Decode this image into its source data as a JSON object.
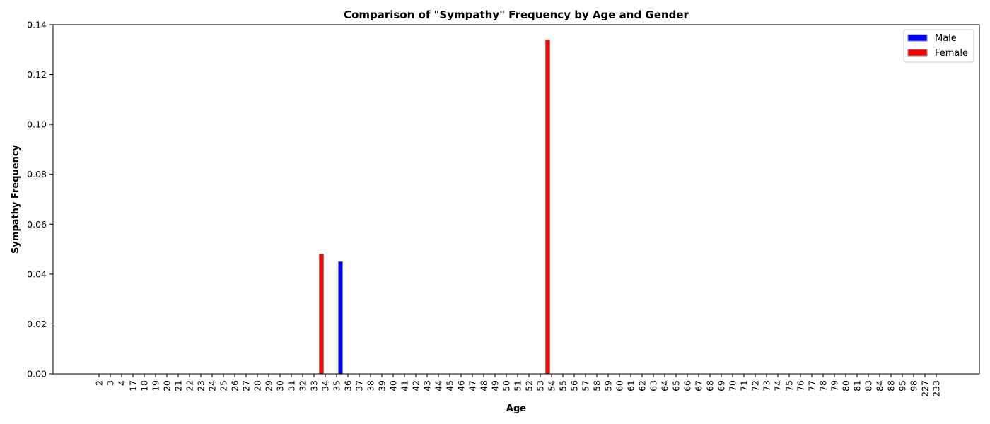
{
  "chart_data": {
    "type": "bar",
    "title": "Comparison of \"Sympathy\" Frequency by Age and Gender",
    "xlabel": "Age",
    "ylabel": "Sympathy Frequency",
    "ylim": [
      0,
      0.14
    ],
    "yticks": [
      "0.00",
      "0.02",
      "0.04",
      "0.06",
      "0.08",
      "0.10",
      "0.12",
      "0.14"
    ],
    "grid": false,
    "legend_position": "top-right",
    "categories": [
      "2",
      "3",
      "4",
      "17",
      "18",
      "19",
      "20",
      "21",
      "22",
      "23",
      "24",
      "25",
      "26",
      "27",
      "28",
      "29",
      "30",
      "31",
      "32",
      "33",
      "34",
      "35",
      "36",
      "37",
      "38",
      "39",
      "40",
      "41",
      "42",
      "43",
      "44",
      "45",
      "46",
      "47",
      "48",
      "49",
      "50",
      "51",
      "52",
      "53",
      "54",
      "55",
      "56",
      "57",
      "58",
      "59",
      "60",
      "61",
      "62",
      "63",
      "64",
      "65",
      "66",
      "67",
      "68",
      "69",
      "70",
      "71",
      "72",
      "73",
      "74",
      "75",
      "76",
      "77",
      "78",
      "79",
      "80",
      "81",
      "83",
      "84",
      "88",
      "95",
      "98",
      "227",
      "233"
    ],
    "series": [
      {
        "name": "Male",
        "color": "#0000ff",
        "points": [
          {
            "category": "35",
            "value": 0.045
          }
        ]
      },
      {
        "name": "Female",
        "color": "#ff0000",
        "points": [
          {
            "category": "34",
            "value": 0.048
          },
          {
            "category": "54",
            "value": 0.134
          }
        ]
      }
    ]
  }
}
